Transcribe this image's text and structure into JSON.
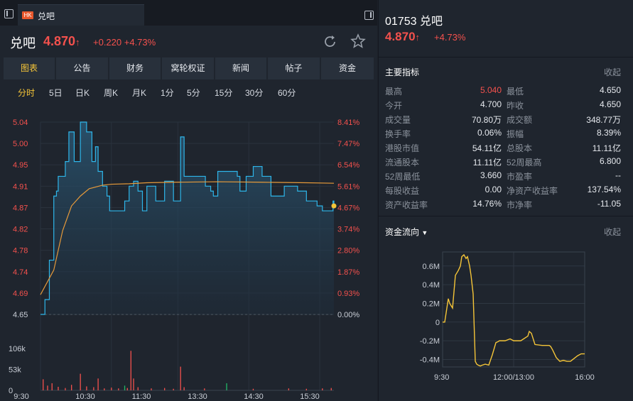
{
  "tab": {
    "badge": "HK",
    "name": "兑吧"
  },
  "header": {
    "name": "兑吧",
    "price": "4.870",
    "arrow": "↑",
    "change": "+0.220",
    "change_pct": "+4.73%"
  },
  "nav": [
    "图表",
    "公告",
    "财务",
    "窝轮权证",
    "新闻",
    "帖子",
    "资金"
  ],
  "periods": [
    "分时",
    "5日",
    "日K",
    "周K",
    "月K",
    "1分",
    "5分",
    "15分",
    "30分",
    "60分"
  ],
  "chart_data": [
    {
      "type": "line",
      "title": "",
      "y_price_labels": [
        "5.04",
        "5.00",
        "4.95",
        "4.91",
        "4.87",
        "4.82",
        "4.78",
        "4.74",
        "4.69",
        "4.65"
      ],
      "y_pct_labels": [
        "8.41%",
        "7.47%",
        "6.54%",
        "5.61%",
        "4.67%",
        "3.74%",
        "2.80%",
        "1.87%",
        "0.93%",
        "0.00%"
      ],
      "ylim": [
        4.65,
        5.04
      ],
      "x_labels": [
        "9:30",
        "10:30",
        "11:30",
        "13:30",
        "14:30",
        "15:30"
      ],
      "series": [
        {
          "name": "price",
          "color": "#2eb6ea",
          "x": [
            0,
            5,
            10,
            15,
            18,
            20,
            28,
            32,
            38,
            45,
            52,
            58,
            62,
            65,
            70,
            75,
            78,
            82,
            88,
            95,
            100,
            105,
            110,
            115,
            120,
            130,
            140,
            150,
            158,
            162,
            170,
            180,
            186,
            190,
            192,
            195,
            200,
            210,
            222,
            225,
            232,
            240,
            250,
            260,
            275,
            285,
            290,
            300,
            312,
            318,
            322,
            330,
            331
          ],
          "y": [
            4.65,
            4.68,
            4.76,
            4.89,
            4.9,
            4.93,
            4.96,
            5.02,
            4.96,
            5.04,
            5.02,
            4.96,
            4.99,
            4.94,
            4.91,
            4.89,
            4.86,
            4.86,
            4.86,
            4.88,
            4.91,
            4.92,
            4.9,
            4.86,
            4.91,
            4.88,
            4.92,
            4.88,
            5.01,
            4.93,
            4.93,
            4.93,
            4.91,
            4.91,
            4.9,
            4.89,
            4.94,
            4.94,
            4.93,
            4.9,
            4.93,
            4.95,
            4.93,
            4.89,
            4.91,
            4.91,
            4.9,
            4.88,
            4.87,
            4.86,
            4.86,
            4.88,
            4.87
          ]
        },
        {
          "name": "avg",
          "color": "#e69a3a",
          "x": [
            0,
            15,
            25,
            35,
            45,
            55,
            70,
            80,
            100,
            120,
            150,
            200,
            250,
            300,
            331
          ],
          "y": [
            4.69,
            4.74,
            4.82,
            4.87,
            4.89,
            4.905,
            4.912,
            4.914,
            4.915,
            4.917,
            4.918,
            4.919,
            4.918,
            4.917,
            4.916
          ]
        }
      ],
      "last_price": 4.87
    },
    {
      "type": "bar",
      "title": "",
      "y_labels": [
        "106k",
        "53k",
        "0"
      ],
      "ylim": [
        0,
        140000
      ],
      "x_labels": [
        "9:30",
        "10:30",
        "11:30",
        "13:30",
        "14:30",
        "15:30"
      ],
      "values": [
        {
          "x": 3,
          "v": 28000,
          "c": "#f4514d"
        },
        {
          "x": 8,
          "v": 12000,
          "c": "#f4514d"
        },
        {
          "x": 13,
          "v": 18000,
          "c": "#f4514d"
        },
        {
          "x": 20,
          "v": 9000,
          "c": "#f4514d"
        },
        {
          "x": 28,
          "v": 6000,
          "c": "#f4514d"
        },
        {
          "x": 35,
          "v": 14000,
          "c": "#f4514d"
        },
        {
          "x": 45,
          "v": 42000,
          "c": "#f4514d"
        },
        {
          "x": 52,
          "v": 10000,
          "c": "#f4514d"
        },
        {
          "x": 60,
          "v": 8000,
          "c": "#f4514d"
        },
        {
          "x": 65,
          "v": 30000,
          "c": "#f4514d"
        },
        {
          "x": 72,
          "v": 5000,
          "c": "#f4514d"
        },
        {
          "x": 80,
          "v": 7000,
          "c": "#f4514d"
        },
        {
          "x": 88,
          "v": 5000,
          "c": "#f4514d"
        },
        {
          "x": 95,
          "v": 12000,
          "c": "#22b867"
        },
        {
          "x": 98,
          "v": 6000,
          "c": "#f4514d"
        },
        {
          "x": 102,
          "v": 100000,
          "c": "#f4514d"
        },
        {
          "x": 105,
          "v": 30000,
          "c": "#f4514d"
        },
        {
          "x": 110,
          "v": 8000,
          "c": "#f4514d"
        },
        {
          "x": 125,
          "v": 5000,
          "c": "#f4514d"
        },
        {
          "x": 140,
          "v": 6000,
          "c": "#f4514d"
        },
        {
          "x": 150,
          "v": 4000,
          "c": "#f4514d"
        },
        {
          "x": 158,
          "v": 60000,
          "c": "#f4514d"
        },
        {
          "x": 162,
          "v": 8000,
          "c": "#f4514d"
        },
        {
          "x": 185,
          "v": 5000,
          "c": "#f4514d"
        },
        {
          "x": 210,
          "v": 18000,
          "c": "#22b867"
        },
        {
          "x": 240,
          "v": 4000,
          "c": "#f4514d"
        },
        {
          "x": 280,
          "v": 5000,
          "c": "#f4514d"
        },
        {
          "x": 300,
          "v": 4000,
          "c": "#f4514d"
        },
        {
          "x": 318,
          "v": 5000,
          "c": "#f4514d"
        },
        {
          "x": 328,
          "v": 6000,
          "c": "#f4514d"
        }
      ]
    },
    {
      "type": "line",
      "title": "",
      "y_labels": [
        "0.6M",
        "0.4M",
        "0.2M",
        "0",
        "-0.2M",
        "-0.4M"
      ],
      "ylim": [
        -0.48,
        0.75
      ],
      "x_labels": [
        "9:30",
        "12:00/13:00",
        "16:00"
      ],
      "series": [
        {
          "name": "flow",
          "color": "#f5c538",
          "x": [
            0,
            3,
            5,
            8,
            10,
            14,
            18,
            22,
            25,
            27,
            30,
            33,
            35,
            38,
            40,
            43,
            46,
            48,
            50,
            53,
            56,
            60,
            65,
            70,
            75,
            78,
            80,
            85,
            88,
            95,
            100,
            110,
            120,
            122,
            125,
            130,
            140,
            150,
            152,
            155,
            160,
            165,
            170,
            175,
            180,
            190,
            195,
            200
          ],
          "y": [
            0.0,
            0.0,
            0.1,
            0.25,
            0.2,
            0.15,
            0.5,
            0.55,
            0.6,
            0.7,
            0.72,
            0.68,
            0.7,
            0.6,
            0.5,
            0.3,
            -0.42,
            -0.45,
            -0.46,
            -0.47,
            -0.46,
            -0.45,
            -0.46,
            -0.35,
            -0.22,
            -0.21,
            -0.2,
            -0.2,
            -0.2,
            -0.18,
            -0.2,
            -0.2,
            -0.15,
            -0.1,
            -0.12,
            -0.24,
            -0.25,
            -0.25,
            -0.26,
            -0.3,
            -0.38,
            -0.42,
            -0.41,
            -0.42,
            -0.42,
            -0.36,
            -0.34,
            -0.34
          ]
        }
      ]
    }
  ],
  "right": {
    "code_title": "01753 兑吧",
    "price": "4.870",
    "arrow": "↑",
    "change_pct": "+4.73%",
    "metrics_title": "主要指标",
    "collapse_label": "收起",
    "metrics": [
      {
        "label": "最高",
        "value": "5.040",
        "red": true,
        "label2": "最低",
        "value2": "4.650"
      },
      {
        "label": "今开",
        "value": "4.700",
        "label2": "昨收",
        "value2": "4.650"
      },
      {
        "label": "成交量",
        "value": "70.80万",
        "label2": "成交额",
        "value2": "348.77万"
      },
      {
        "label": "换手率",
        "value": "0.06%",
        "label2": "振幅",
        "value2": "8.39%"
      },
      {
        "label": "港股市值",
        "value": "54.11亿",
        "label2": "总股本",
        "value2": "11.11亿"
      },
      {
        "label": "流通股本",
        "value": "11.11亿",
        "label2": "52周最高",
        "value2": "6.800"
      },
      {
        "label": "52周最低",
        "value": "3.660",
        "label2": "市盈率",
        "value2": "--"
      },
      {
        "label": "每股收益",
        "value": "0.00",
        "label2": "净资产收益率",
        "value2": "137.54%"
      },
      {
        "label": "资产收益率",
        "value": "14.76%",
        "label2": "市净率",
        "value2": "-11.05"
      }
    ],
    "flow_title": "资金流向",
    "flow_collapse": "收起"
  }
}
